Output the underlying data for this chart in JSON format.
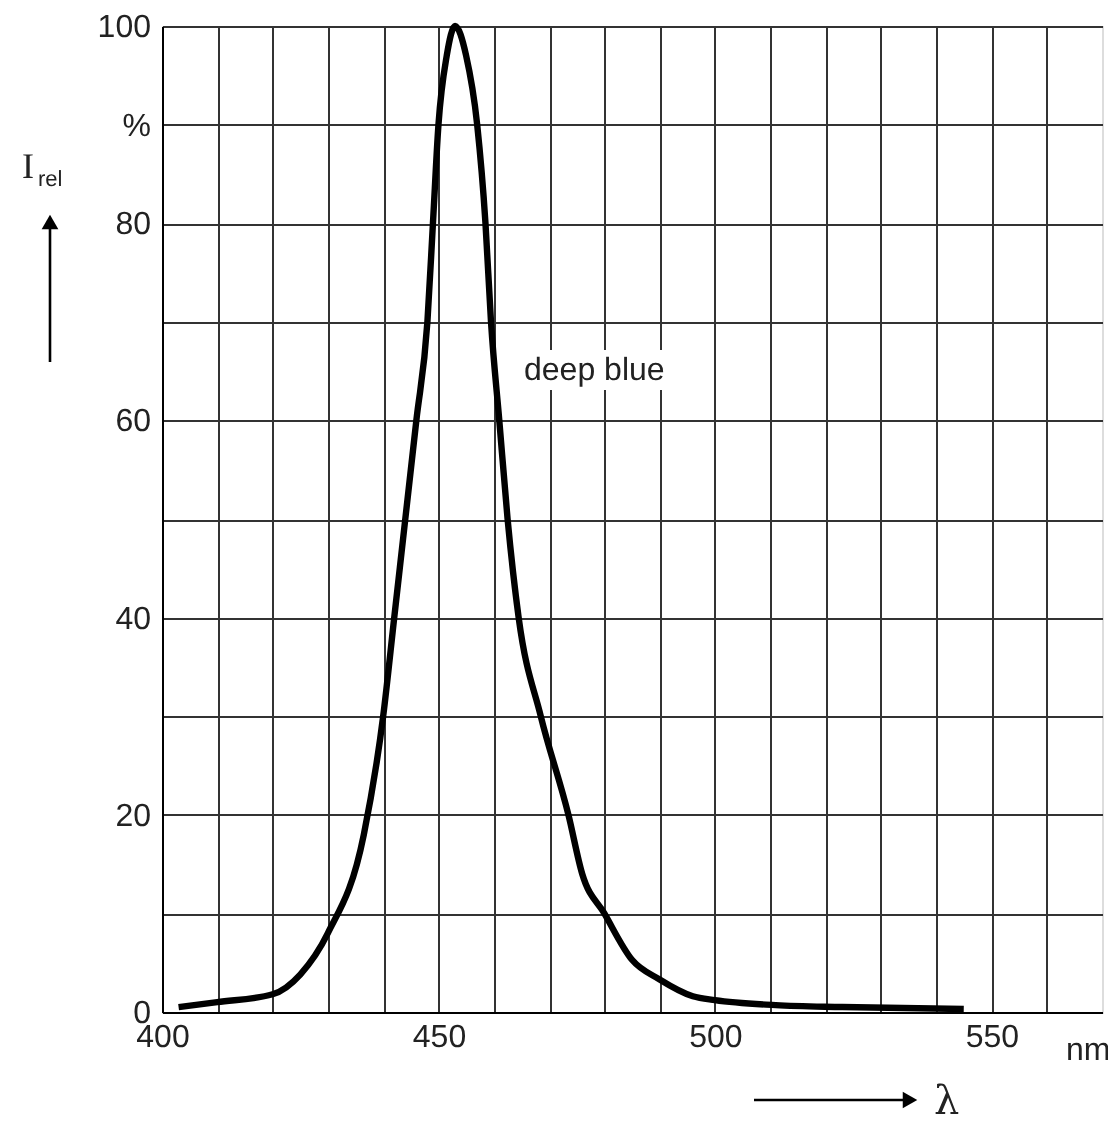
{
  "chart_data": {
    "type": "line",
    "xlabel": "λ",
    "ylabel": "I$_{rel}$",
    "x": [
      403,
      410,
      420,
      425,
      430,
      436.5,
      440,
      442,
      444,
      446,
      448,
      449,
      450,
      451.5,
      453,
      455,
      457,
      458.5,
      459.5,
      461,
      462.5,
      464.5,
      468.5,
      473.5,
      476,
      480,
      485,
      490,
      496,
      500,
      511,
      523,
      545
    ],
    "series": [
      {
        "color": "#000000",
        "values": [
          0.5,
          1,
          1.8,
          3.8,
          8,
          18,
          30,
          40,
          50,
          60,
          70,
          80,
          90,
          97,
          100,
          97,
          90,
          80,
          70,
          60,
          50,
          40,
          30,
          20,
          14,
          10,
          5.3,
          3.3,
          1.6,
          1.2,
          0.7,
          0.5,
          0.3
        ]
      }
    ],
    "xlim": [
      400,
      570
    ],
    "ylim": [
      0,
      100
    ],
    "xticks": [
      400,
      {
        "value": 410,
        "label": null
      },
      {
        "value": 420,
        "label": null
      },
      {
        "value": 430,
        "label": null
      },
      {
        "value": 440,
        "label": null
      },
      450,
      {
        "value": 460,
        "label": null
      },
      {
        "value": 470,
        "label": null
      },
      {
        "value": 480,
        "label": null
      },
      {
        "value": 490,
        "label": null
      },
      500,
      {
        "value": 510,
        "label": null
      },
      {
        "value": 520,
        "label": null
      },
      {
        "value": 530,
        "label": null
      },
      {
        "value": 540,
        "label": null
      },
      550,
      {
        "value": 560,
        "label": null
      }
    ],
    "yticks": [
      0,
      {
        "value": 10,
        "label": null
      },
      20,
      {
        "value": 30,
        "label": null
      },
      40,
      {
        "value": 50,
        "label": null
      },
      60,
      {
        "value": 70,
        "label": null
      },
      80,
      {
        "value": 90,
        "label": "%"
      },
      100
    ],
    "grid": true,
    "marker": "none",
    "line_style": "solid",
    "annotations": [
      "deep blue",
      "nm"
    ]
  }
}
